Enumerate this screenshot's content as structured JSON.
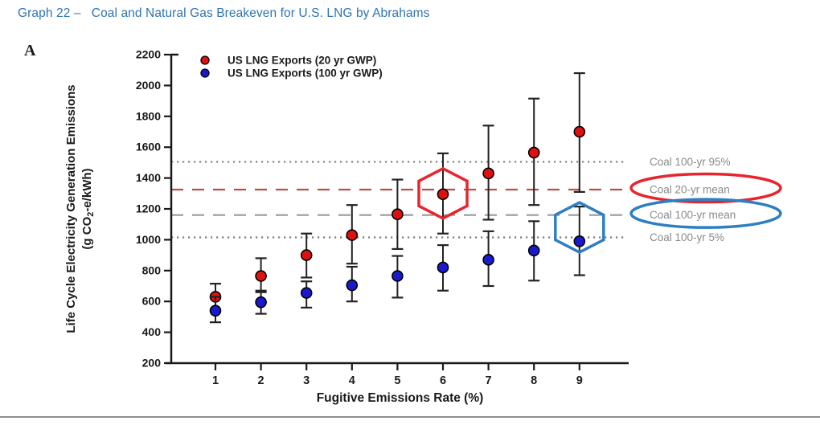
{
  "page": {
    "title": "Graph 22 –   Coal and Natural Gas Breakeven for U.S. LNG by Abrahams",
    "title_color": "#2E74B5",
    "panel_label": "A"
  },
  "chart_data": {
    "type": "scatter",
    "title": "",
    "xlabel": "Fugitive Emissions Rate (%)",
    "ylabel_line1": "Life Cycle Electricity Generation Emissions",
    "ylabel_line2": {
      "pre": "(g CO",
      "sub": "2",
      "post": "-e/kWh)"
    },
    "x": [
      1,
      2,
      3,
      4,
      5,
      6,
      7,
      8,
      9
    ],
    "ylim": [
      200,
      2200
    ],
    "ytick_step": 200,
    "grid": false,
    "legend_position": "top-left-inside",
    "axis_color": "#1a1a1a",
    "errorbar_color": "#222222",
    "series": [
      {
        "name": "US LNG Exports (20 yr GWP)",
        "color": "#dd1111",
        "values": [
          630,
          765,
          900,
          1030,
          1165,
          1295,
          1430,
          1565,
          1700
        ],
        "err_lo": [
          545,
          670,
          755,
          845,
          940,
          1040,
          1130,
          1225,
          1310
        ],
        "err_hi": [
          715,
          880,
          1040,
          1225,
          1390,
          1560,
          1740,
          1915,
          2080
        ]
      },
      {
        "name": "US LNG Exports (100 yr GWP)",
        "color": "#1a1acc",
        "values": [
          540,
          595,
          655,
          705,
          765,
          820,
          870,
          930,
          990
        ],
        "err_lo": [
          465,
          520,
          560,
          600,
          625,
          670,
          700,
          735,
          770
        ],
        "err_hi": [
          630,
          660,
          730,
          825,
          895,
          965,
          1055,
          1120,
          1215
        ]
      }
    ],
    "reference_lines": [
      {
        "label": "Coal 100-yr 95%",
        "value": 1505,
        "style": "dotted",
        "color": "#7d7d7d",
        "circled": null
      },
      {
        "label": "Coal 20-yr mean",
        "value": 1325,
        "style": "dashed",
        "color": "#b5524d",
        "circled": "#e8252d"
      },
      {
        "label": "Coal 100-yr mean",
        "value": 1160,
        "style": "dashed",
        "color": "#9a9a9a",
        "circled": "#2e7fc1"
      },
      {
        "label": "Coal 100-yr 5%",
        "value": 1015,
        "style": "dotted",
        "color": "#7d7d7d",
        "circled": null
      }
    ],
    "label_color": "#8a8a8a",
    "annotations": [
      {
        "shape": "hexagon",
        "series": "US LNG Exports (20 yr GWP)",
        "x": 6,
        "value": 1300,
        "color": "#e8252d"
      },
      {
        "shape": "hexagon",
        "series": "US LNG Exports (100 yr GWP)",
        "x": 9,
        "value": 1080,
        "color": "#2e7fc1"
      }
    ]
  }
}
